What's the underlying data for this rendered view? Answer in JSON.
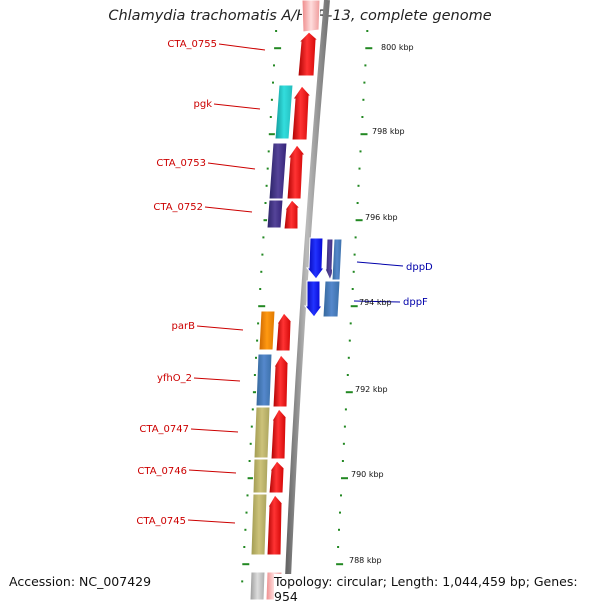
{
  "title": "Chlamydia trachomatis A/HAR-13, complete genome",
  "footer": {
    "accession": "Accession: NC_007429",
    "stats": "Topology: circular; Length: 1,044,459 bp; Genes: 954"
  },
  "scale_labels": [
    "800 kbp",
    "798 kbp",
    "796 kbp",
    "794 kbp",
    "792 kbp",
    "790 kbp",
    "788 kbp"
  ],
  "gene_labels": [
    {
      "name": "CTA_0755",
      "color": "#cc0000",
      "side": "left"
    },
    {
      "name": "pgk",
      "color": "#cc0000",
      "side": "left"
    },
    {
      "name": "CTA_0753",
      "color": "#cc0000",
      "side": "left"
    },
    {
      "name": "CTA_0752",
      "color": "#cc0000",
      "side": "left"
    },
    {
      "name": "parB",
      "color": "#cc0000",
      "side": "left"
    },
    {
      "name": "yfhO_2",
      "color": "#cc0000",
      "side": "left"
    },
    {
      "name": "CTA_0747",
      "color": "#cc0000",
      "side": "left"
    },
    {
      "name": "CTA_0746",
      "color": "#cc0000",
      "side": "left"
    },
    {
      "name": "CTA_0745",
      "color": "#cc0000",
      "side": "left"
    },
    {
      "name": "dppD",
      "color": "#0000aa",
      "side": "right"
    },
    {
      "name": "dppF",
      "color": "#0000aa",
      "side": "right"
    }
  ],
  "colors": {
    "cds_red": "#ee1111",
    "cyan": "#22cccc",
    "purple": "#443388",
    "blue": "#1111ee",
    "steel": "#4477bb",
    "orange": "#ee8800",
    "khaki": "#bbb066",
    "grey": "#aaaaaa",
    "backbone": "#808080",
    "ticks": "#228822"
  }
}
